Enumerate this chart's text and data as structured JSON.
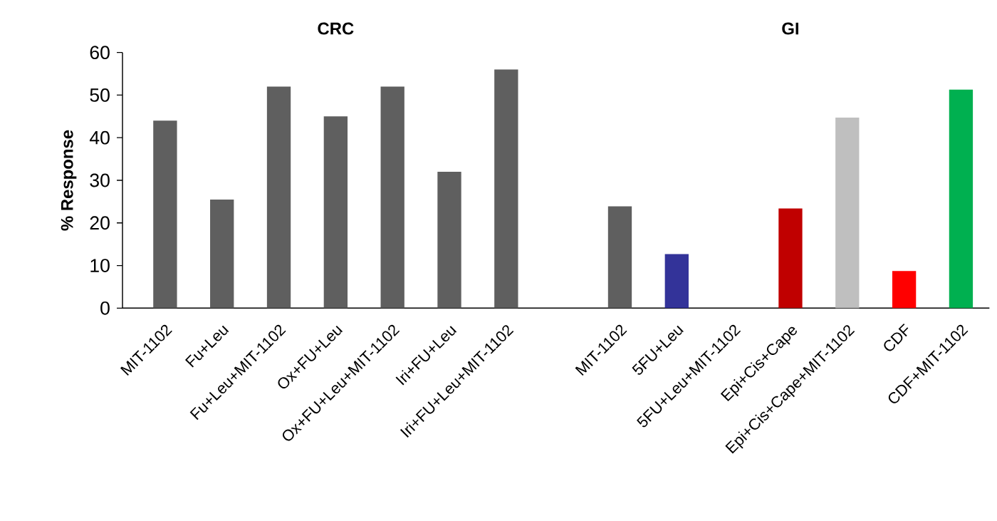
{
  "chart_data": {
    "type": "bar",
    "ylabel": "% Response",
    "annotations": [
      "CRC",
      "GI"
    ],
    "categories": [
      "MIT-1102",
      "Fu+Leu",
      "Fu+Leu+MIT-1102",
      "Ox+FU+Leu",
      "Ox+FU+Leu+MIT-1102",
      "Iri+FU+Leu",
      "Iri+FU+Leu+MIT-1102",
      null,
      "MIT-1102",
      "5FU+Leu",
      "5FU+Leu+MIT-1102",
      "Epi+Cis+Cape",
      "Epi+Cis+Cape+MIT-1102",
      "CDF",
      "CDF+MIT-1102"
    ],
    "values": [
      44,
      25.5,
      52,
      45,
      52,
      32,
      56,
      null,
      23.9,
      12.7,
      null,
      23.4,
      44.7,
      8.7,
      51.3
    ],
    "colors": [
      "#5f5f5f",
      "#5f5f5f",
      "#5f5f5f",
      "#5f5f5f",
      "#5f5f5f",
      "#5f5f5f",
      "#5f5f5f",
      "#5f5f5f",
      "#5f5f5f",
      "#333399",
      "#5f5f5f",
      "#c00000",
      "#bfbfbf",
      "#ff0000",
      "#00b050"
    ],
    "ylim": [
      0,
      60
    ],
    "yticks": [
      0,
      10,
      20,
      30,
      40,
      50,
      60
    ],
    "grid": false
  }
}
